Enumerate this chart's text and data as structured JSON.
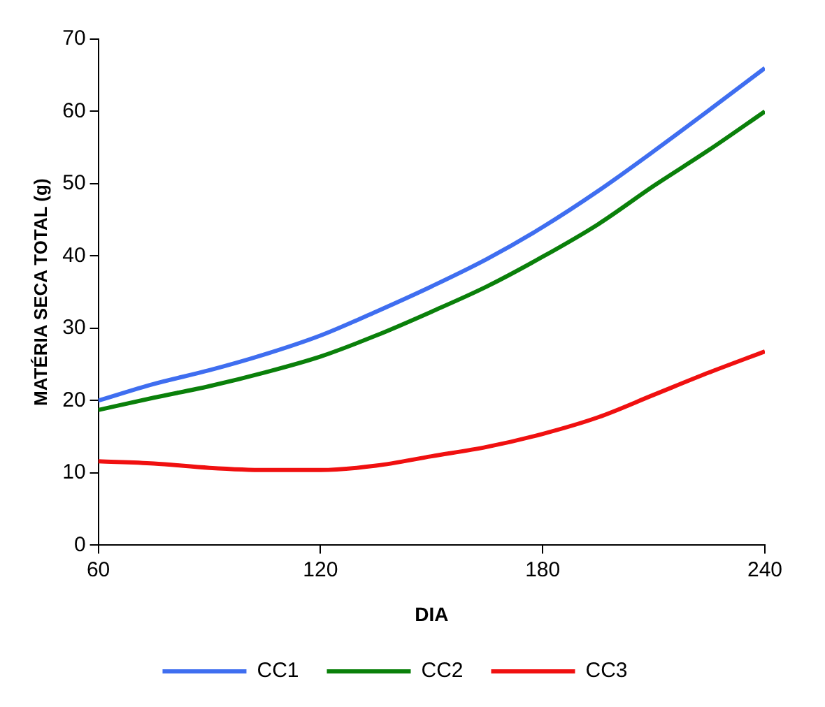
{
  "chart_data": {
    "type": "line",
    "xlabel": "DIA",
    "ylabel": "MATÉRIA SECA TOTAL (g)",
    "x": [
      60,
      75,
      90,
      105,
      120,
      135,
      150,
      165,
      180,
      195,
      210,
      225,
      240
    ],
    "series": [
      {
        "name": "CC1",
        "color": "#3f6ef0",
        "values": [
          20,
          22.3,
          24.2,
          26.4,
          29,
          32.3,
          35.8,
          39.6,
          44,
          49,
          54.5,
          60.2,
          66
        ]
      },
      {
        "name": "CC2",
        "color": "#0a800a",
        "values": [
          18.7,
          20.4,
          22,
          23.9,
          26.1,
          29,
          32.3,
          35.8,
          39.9,
          44.4,
          49.7,
          54.7,
          60
        ]
      },
      {
        "name": "CC3",
        "color": "#f01010",
        "values": [
          11.6,
          11.3,
          10.7,
          10.4,
          10.4,
          11,
          12.3,
          13.6,
          15.4,
          17.7,
          20.8,
          23.9,
          26.8
        ]
      }
    ],
    "xlim": [
      60,
      240
    ],
    "xticks": [
      60,
      120,
      180,
      240
    ],
    "ylim": [
      0,
      70
    ],
    "yticks": [
      0,
      10,
      20,
      30,
      40,
      50,
      60,
      70
    ],
    "grid": false,
    "legend": "bottom",
    "marker": "none",
    "line_style": "solid"
  }
}
